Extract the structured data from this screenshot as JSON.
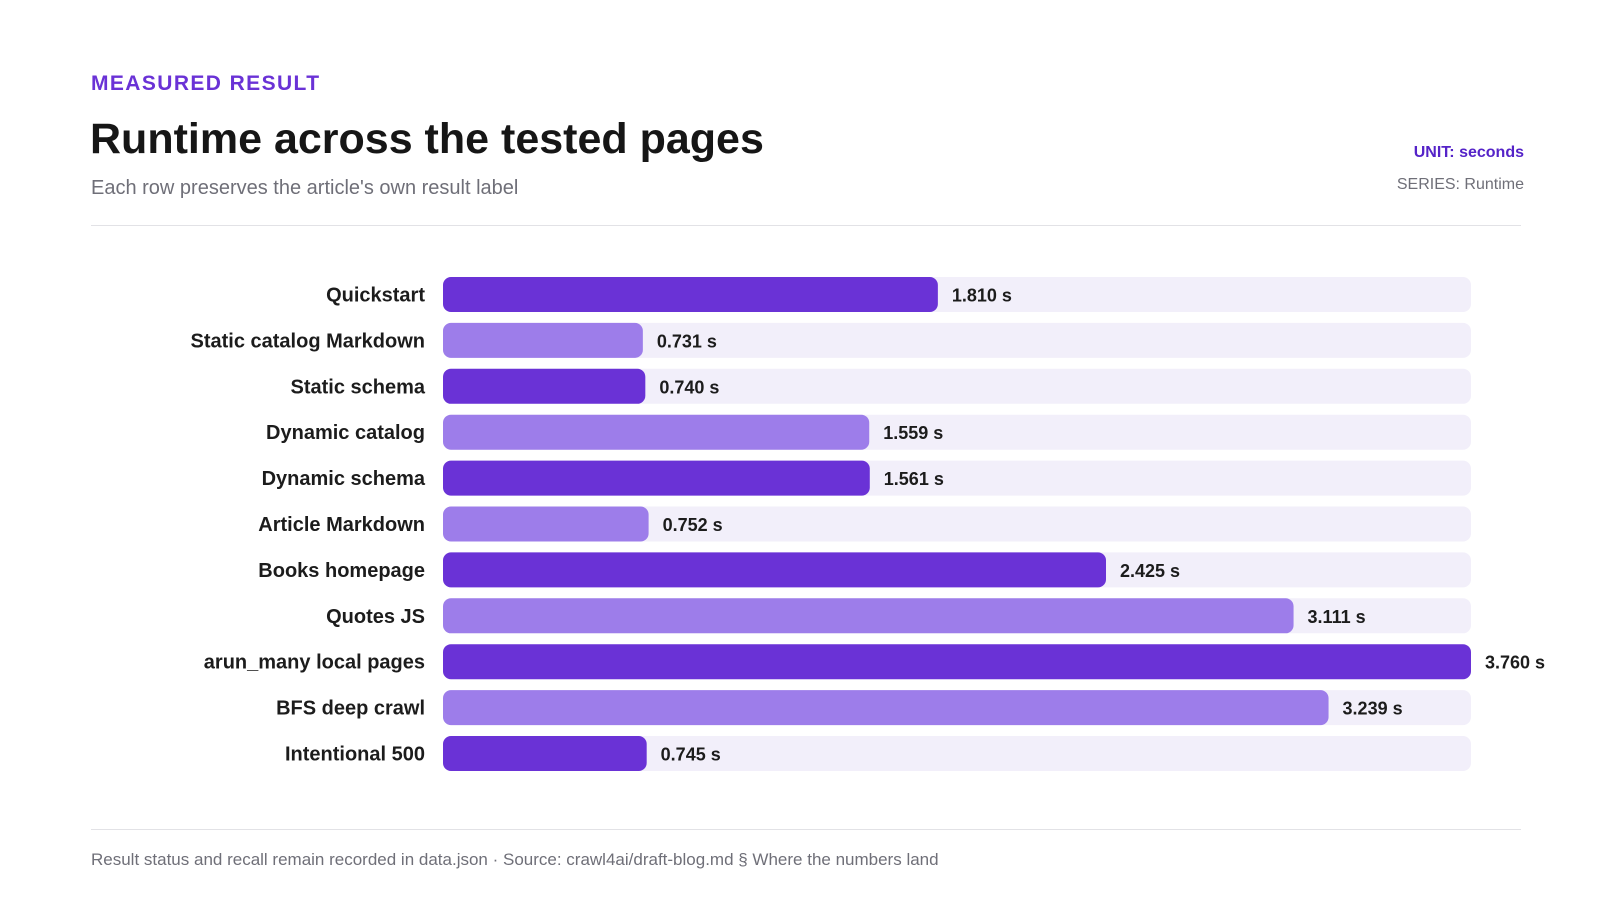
{
  "header": {
    "eyebrow": "MEASURED RESULT",
    "title": "Runtime across the tested pages",
    "subtitle": "Each row preserves the article's own result label",
    "unit": "UNIT: seconds",
    "series": "SERIES: Runtime"
  },
  "footer": {
    "note": "Result status and recall remain recorded in data.json · Source: crawl4ai/draft-blog.md § Where the numbers land"
  },
  "colors": {
    "primary": "#6a32d6",
    "secondary": "#9d7dea",
    "track": "#f2effa"
  },
  "chart_data": {
    "type": "bar",
    "orientation": "horizontal",
    "categories": [
      "Quickstart",
      "Static catalog Markdown",
      "Static schema",
      "Dynamic catalog",
      "Dynamic schema",
      "Article Markdown",
      "Books homepage",
      "Quotes JS",
      "arun_many local pages",
      "BFS deep crawl",
      "Intentional 500"
    ],
    "values": [
      1.81,
      0.731,
      0.74,
      1.559,
      1.561,
      0.752,
      2.425,
      3.111,
      3.76,
      3.239,
      0.745
    ],
    "value_labels": [
      "1.810 s",
      "0.731 s",
      "0.740 s",
      "1.559 s",
      "1.561 s",
      "0.752 s",
      "2.425 s",
      "3.111 s",
      "3.760 s",
      "3.239 s",
      "0.745 s"
    ],
    "xlim": [
      0,
      3.76
    ],
    "grid": false,
    "legend": "none"
  }
}
